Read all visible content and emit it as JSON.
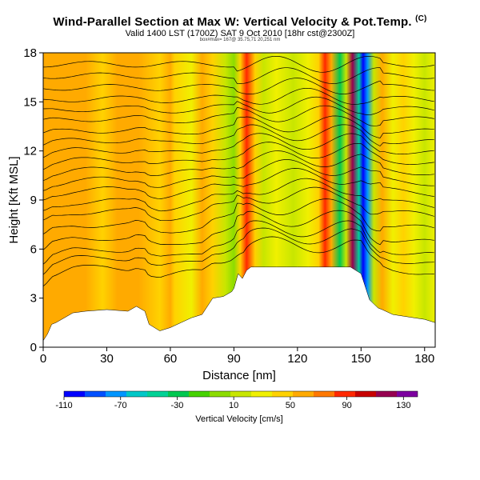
{
  "header": {
    "title": "Wind-Parallel Section at Max W: Vertical Velocity & Pot.Temp.",
    "copyright": "(C)",
    "subtitle": "Valid 1400 LST (1700Z) SAT 9 Oct 2010 [18hr cst@2300Z]",
    "subsubtitle": "box#max= 167@ 35.75,71 20,251 nm"
  },
  "chart_data": {
    "type": "heatmap",
    "title": "Wind-Parallel Section at Max W: Vertical Velocity & Pot.Temp.",
    "xlabel": "Distance [nm]",
    "ylabel": "Height [Kft MSL]",
    "xlim": [
      0,
      185
    ],
    "ylim": [
      0,
      18
    ],
    "xticks": [
      0,
      30,
      60,
      90,
      120,
      150,
      180
    ],
    "yticks": [
      0,
      3,
      6,
      9,
      12,
      15,
      18
    ],
    "field": "Vertical Velocity",
    "contours": "Potential Temperature",
    "colorbar": {
      "label": "Vertical Velocity [cm/s]",
      "min": -110,
      "max": 140,
      "ticks": [
        -110,
        -70,
        -30,
        10,
        50,
        90,
        130
      ],
      "colors": [
        "#0000ff",
        "#0050ff",
        "#0096ff",
        "#00c8c8",
        "#00d296",
        "#00c850",
        "#46d200",
        "#8cdc00",
        "#c8e600",
        "#f0f000",
        "#ffd200",
        "#ffaa00",
        "#ff7800",
        "#ff2800",
        "#c80000",
        "#960050",
        "#7d00a0"
      ]
    },
    "terrain": {
      "x": [
        0,
        2,
        4,
        6,
        10,
        14,
        20,
        30,
        40,
        44,
        48,
        50,
        55,
        60,
        65,
        70,
        75,
        80,
        85,
        89,
        90,
        92,
        94,
        96,
        98,
        100,
        105,
        110,
        115,
        120,
        125,
        130,
        135,
        140,
        145,
        150,
        154,
        158,
        160,
        165,
        170,
        175,
        180,
        185
      ],
      "height": [
        0.4,
        0.8,
        1.4,
        1.5,
        1.8,
        2.1,
        2.2,
        2.3,
        2.2,
        2.5,
        2.2,
        1.4,
        1.0,
        1.2,
        1.5,
        1.8,
        2.0,
        3.0,
        3.1,
        3.4,
        3.6,
        4.5,
        4.2,
        4.7,
        4.9,
        4.9,
        4.9,
        4.9,
        4.9,
        4.9,
        4.9,
        4.9,
        4.9,
        4.9,
        4.9,
        4.5,
        2.9,
        2.4,
        2.3,
        2.0,
        1.9,
        1.8,
        1.7,
        1.5
      ]
    },
    "columns": [
      {
        "x": 0,
        "w": 58
      },
      {
        "x": 10,
        "w": 60
      },
      {
        "x": 20,
        "w": 55
      },
      {
        "x": 28,
        "w": 40
      },
      {
        "x": 35,
        "w": 54
      },
      {
        "x": 45,
        "w": 60
      },
      {
        "x": 55,
        "w": 48
      },
      {
        "x": 60,
        "w": 60
      },
      {
        "x": 62,
        "w": 45
      },
      {
        "x": 70,
        "w": 30
      },
      {
        "x": 75,
        "w": 55
      },
      {
        "x": 80,
        "w": 40
      },
      {
        "x": 86,
        "w": 10
      },
      {
        "x": 90,
        "w": -5
      },
      {
        "x": 93,
        "w": 50
      },
      {
        "x": 96,
        "w": 85
      },
      {
        "x": 100,
        "w": 45
      },
      {
        "x": 104,
        "w": 15
      },
      {
        "x": 110,
        "w": 25
      },
      {
        "x": 118,
        "w": 10
      },
      {
        "x": 125,
        "w": 25
      },
      {
        "x": 130,
        "w": 45
      },
      {
        "x": 133,
        "w": 95
      },
      {
        "x": 136,
        "w": 60
      },
      {
        "x": 140,
        "w": -30
      },
      {
        "x": 143,
        "w": 20
      },
      {
        "x": 146,
        "w": 125
      },
      {
        "x": 149,
        "w": -40
      },
      {
        "x": 151,
        "w": -105
      },
      {
        "x": 153,
        "w": -80
      },
      {
        "x": 156,
        "w": 15
      },
      {
        "x": 160,
        "w": 55
      },
      {
        "x": 165,
        "w": 25
      },
      {
        "x": 170,
        "w": 45
      },
      {
        "x": 175,
        "w": 30
      },
      {
        "x": 180,
        "w": 20
      },
      {
        "x": 185,
        "w": 35
      }
    ],
    "contour_levels": [
      5.0,
      5.6,
      6.1,
      6.8,
      7.6,
      8.4,
      9.0,
      9.7,
      10.3,
      10.9,
      11.5,
      12.1,
      12.7,
      13.3,
      14.0,
      14.6,
      15.2,
      15.9,
      16.6,
      17.3
    ]
  },
  "colorbar": {
    "label": "Vertical Velocity [cm/s]",
    "tick_labels": [
      "-110",
      "-70",
      "-30",
      "10",
      "50",
      "90",
      "130"
    ]
  },
  "axes": {
    "xlabel": "Distance [nm]",
    "ylabel": "Height [Kft MSL]",
    "xtick_labels": [
      "0",
      "30",
      "60",
      "90",
      "120",
      "150",
      "180"
    ],
    "ytick_labels": [
      "0",
      "3",
      "6",
      "9",
      "12",
      "15",
      "18"
    ]
  }
}
